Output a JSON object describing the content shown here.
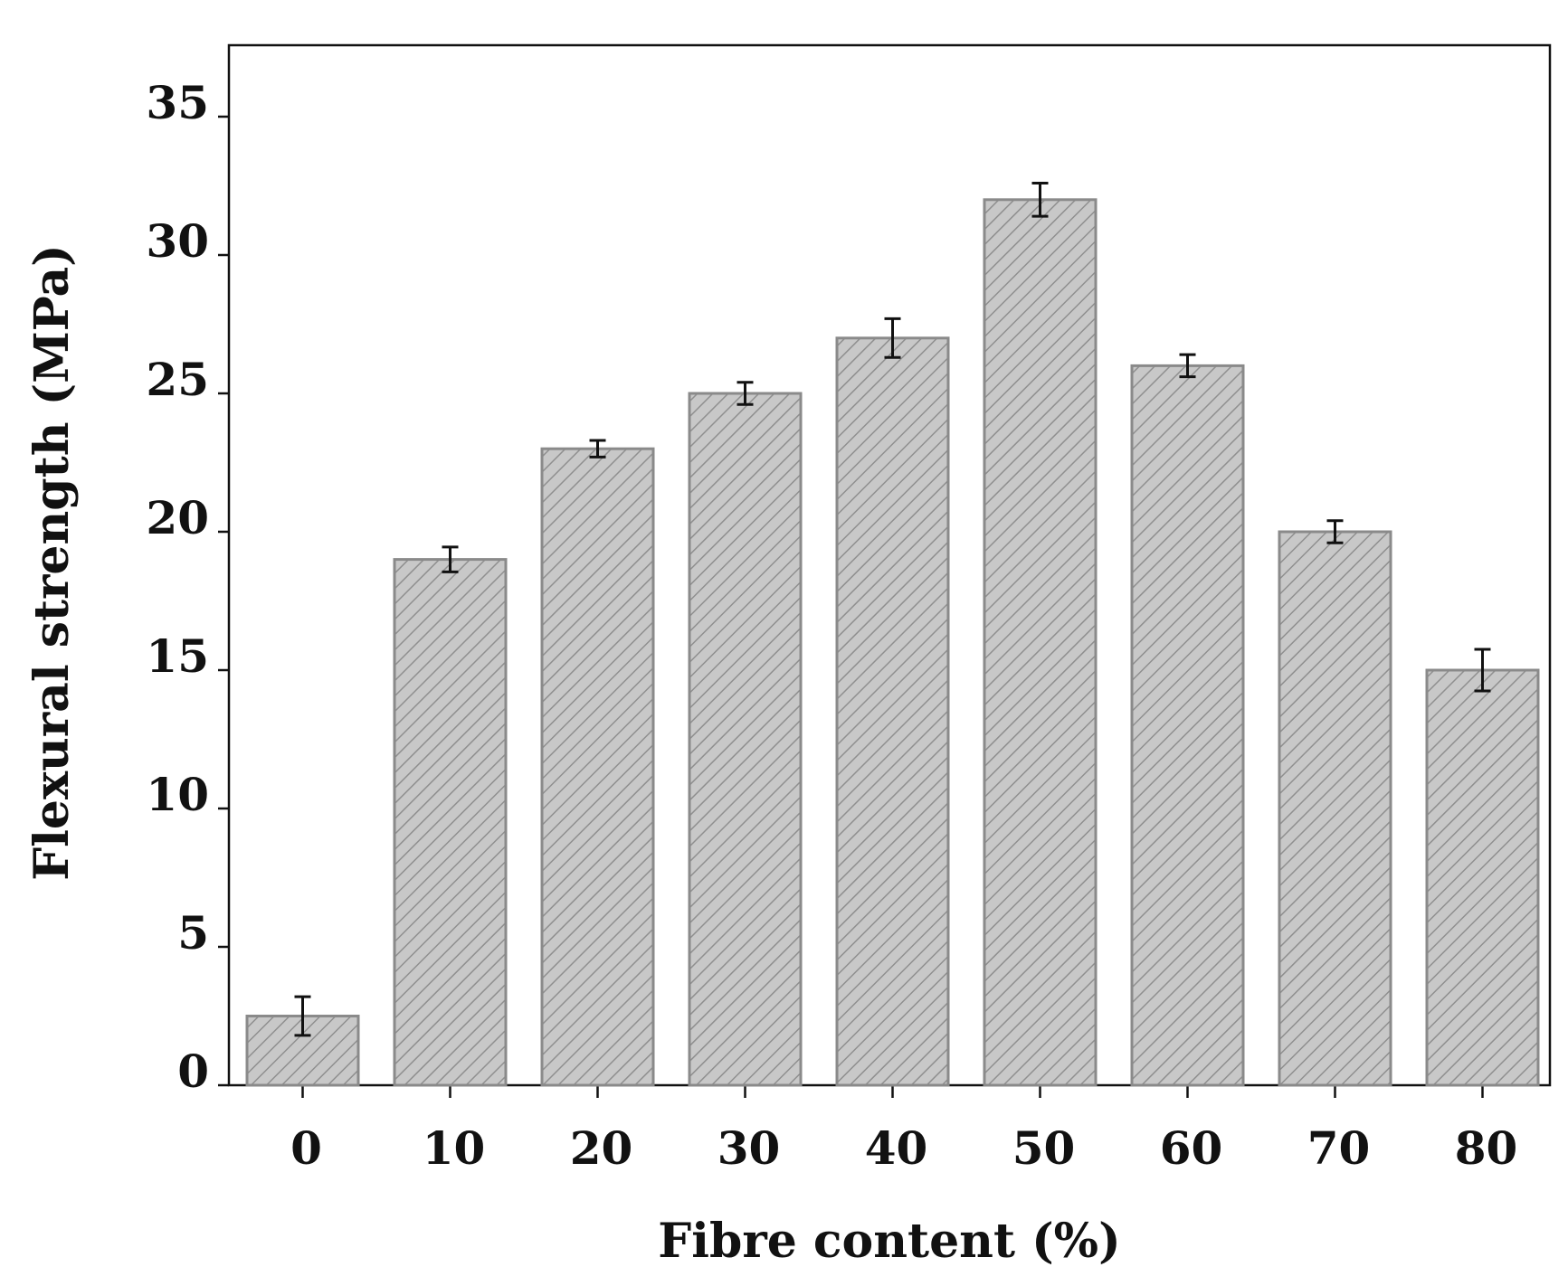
{
  "chart_data": {
    "type": "bar",
    "title": "",
    "xlabel": "Fibre content (%)",
    "ylabel": "Flexural strength (MPa)",
    "categories": [
      "0",
      "10",
      "20",
      "30",
      "40",
      "50",
      "60",
      "70",
      "80"
    ],
    "values": [
      2.5,
      19,
      23,
      25,
      27,
      32,
      26,
      20,
      15
    ],
    "error": [
      0.7,
      0.45,
      0.3,
      0.4,
      0.7,
      0.6,
      0.4,
      0.4,
      0.75
    ],
    "ylim": [
      0,
      37.5
    ],
    "yticks": [
      0,
      5,
      10,
      15,
      20,
      25,
      30,
      35
    ],
    "grid": false,
    "legend": "none",
    "colors": {
      "bar_fill": "#c8c8c8",
      "bar_stroke": "#8a8a8a",
      "hatch": "#8f8f8f",
      "axis": "#111111",
      "error_bar": "#111111"
    }
  }
}
